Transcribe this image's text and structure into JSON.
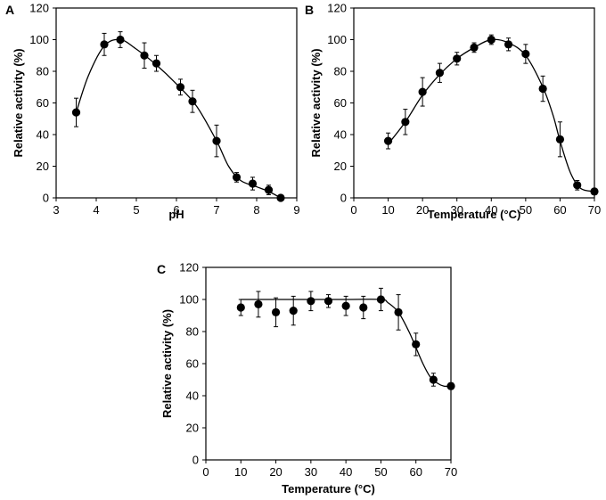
{
  "chart_data": [
    {
      "panel": "A",
      "type": "scatter",
      "xlabel": "pH",
      "ylabel": "Relative activity (%)",
      "xlim": [
        3,
        9
      ],
      "ylim": [
        0,
        120
      ],
      "xticks": [
        "3",
        "4",
        "5",
        "6",
        "7",
        "8",
        "9"
      ],
      "yticks": [
        "0",
        "20",
        "40",
        "60",
        "80",
        "100",
        "120"
      ],
      "x": [
        3.5,
        4.2,
        4.6,
        5.2,
        5.5,
        6.1,
        6.4,
        7.0,
        7.5,
        7.9,
        8.3,
        8.6
      ],
      "y": [
        54,
        97,
        100,
        90,
        85,
        70,
        61,
        36,
        13,
        9,
        5,
        0
      ],
      "error": [
        9,
        7,
        5,
        8,
        5,
        5,
        7,
        10,
        3,
        4,
        3,
        1
      ],
      "curve": {
        "x": [
          3.5,
          3.8,
          4.2,
          4.6,
          5.0,
          5.5,
          6.0,
          6.5,
          7.0,
          7.3,
          7.6,
          8.0,
          8.3,
          8.6
        ],
        "y": [
          54,
          77,
          96,
          100,
          94,
          84,
          72,
          58,
          36,
          20,
          11,
          7,
          4,
          0
        ]
      }
    },
    {
      "panel": "B",
      "type": "scatter",
      "xlabel": "Temperature (°C)",
      "ylabel": "Relative activity (%)",
      "xlim": [
        0,
        70
      ],
      "ylim": [
        0,
        120
      ],
      "xticks": [
        "0",
        "10",
        "20",
        "30",
        "40",
        "50",
        "60",
        "70"
      ],
      "yticks": [
        "0",
        "20",
        "40",
        "60",
        "80",
        "100",
        "120"
      ],
      "x": [
        10,
        15,
        20,
        25,
        30,
        35,
        40,
        45,
        50,
        55,
        60,
        65,
        70
      ],
      "y": [
        36,
        48,
        67,
        79,
        88,
        95,
        100,
        97,
        91,
        69,
        37,
        8,
        4
      ],
      "error": [
        5,
        8,
        9,
        6,
        4,
        3,
        3,
        4,
        6,
        8,
        11,
        3,
        2
      ],
      "curve": {
        "x": [
          10,
          15,
          20,
          25,
          30,
          35,
          40,
          45,
          50,
          55,
          58,
          60,
          63,
          66,
          70
        ],
        "y": [
          34,
          48,
          65,
          78,
          88,
          95,
          100,
          98,
          90,
          70,
          52,
          36,
          16,
          6,
          4
        ]
      }
    },
    {
      "panel": "C",
      "type": "scatter",
      "xlabel": "Temperature (°C)",
      "ylabel": "Relative activity (%)",
      "xlim": [
        0,
        70
      ],
      "ylim": [
        0,
        120
      ],
      "xticks": [
        "0",
        "10",
        "20",
        "30",
        "40",
        "50",
        "60",
        "70"
      ],
      "yticks": [
        "0",
        "20",
        "40",
        "60",
        "80",
        "100",
        "120"
      ],
      "x": [
        10,
        15,
        20,
        25,
        30,
        35,
        40,
        45,
        50,
        55,
        60,
        65,
        70
      ],
      "y": [
        95,
        97,
        92,
        93,
        99,
        99,
        96,
        95,
        100,
        92,
        72,
        50,
        46
      ],
      "error": [
        5,
        8,
        9,
        9,
        6,
        4,
        6,
        7,
        7,
        11,
        7,
        4,
        2
      ],
      "curve": {
        "x": [
          10,
          20,
          30,
          40,
          50,
          52,
          55,
          58,
          60,
          62,
          64,
          66,
          68,
          70
        ],
        "y": [
          100,
          100,
          100,
          100,
          100,
          98,
          92,
          80,
          70,
          60,
          52,
          48,
          46,
          46
        ]
      }
    }
  ]
}
